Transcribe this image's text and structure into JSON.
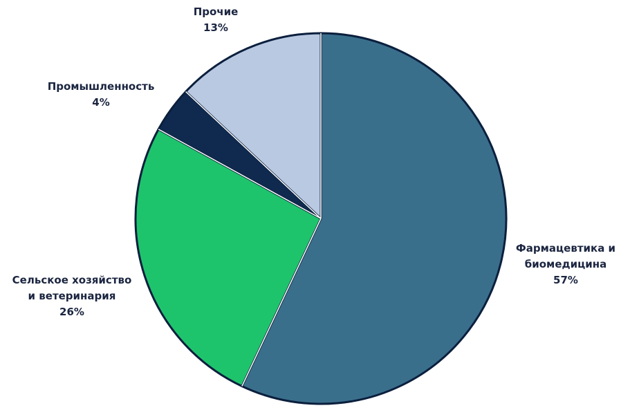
{
  "chart_data": {
    "type": "pie",
    "slices": [
      {
        "label_lines": [
          "Фармацевтика и",
          "биомедицина"
        ],
        "value": 57,
        "value_label": "57%",
        "color": "#3a6f8c"
      },
      {
        "label_lines": [
          "Сельское хозяйство",
          "и ветеринария"
        ],
        "value": 26,
        "value_label": "26%",
        "color": "#1ec46c"
      },
      {
        "label_lines": [
          "Промышленность"
        ],
        "value": 4,
        "value_label": "4%",
        "color": "#0f2a4e"
      },
      {
        "label_lines": [
          "Прочие"
        ],
        "value": 13,
        "value_label": "13%",
        "color": "#b9c9e2"
      }
    ],
    "start_angle_deg": 0,
    "direction": "clockwise",
    "edge_color": "#0b1f3d"
  }
}
